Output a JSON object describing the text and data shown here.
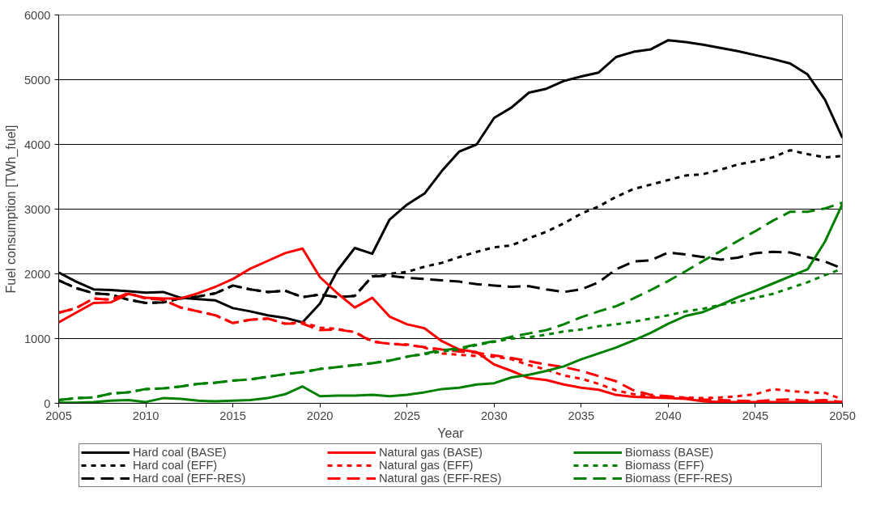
{
  "chart_data": {
    "type": "line",
    "xlabel": "Year",
    "ylabel": "Fuel consumption [TWh_fuel]",
    "x": [
      2005,
      2006,
      2007,
      2008,
      2009,
      2010,
      2011,
      2012,
      2013,
      2014,
      2015,
      2016,
      2017,
      2018,
      2019,
      2020,
      2021,
      2022,
      2023,
      2024,
      2025,
      2026,
      2027,
      2028,
      2029,
      2030,
      2031,
      2032,
      2033,
      2034,
      2035,
      2036,
      2037,
      2038,
      2039,
      2040,
      2041,
      2042,
      2043,
      2044,
      2045,
      2046,
      2047,
      2048,
      2049,
      2050
    ],
    "xlim": [
      2005,
      2050
    ],
    "xticks": [
      2005,
      2010,
      2015,
      2020,
      2025,
      2030,
      2035,
      2040,
      2045,
      2050
    ],
    "ylim": [
      0,
      6000
    ],
    "yticks": [
      0,
      1000,
      2000,
      3000,
      4000,
      5000,
      6000
    ],
    "grid": "y",
    "legend": "bottom",
    "series": [
      {
        "name": "Hard coal (BASE)",
        "color": "#000000",
        "line_style": "solid",
        "values": [
          2020,
          1880,
          1760,
          1750,
          1730,
          1710,
          1720,
          1630,
          1610,
          1590,
          1470,
          1420,
          1360,
          1320,
          1250,
          1540,
          2050,
          2400,
          2310,
          2840,
          3070,
          3240,
          3590,
          3890,
          4000,
          4410,
          4570,
          4800,
          4860,
          4980,
          5050,
          5110,
          5350,
          5430,
          5470,
          5610,
          5580,
          5540,
          5490,
          5440,
          5380,
          5320,
          5250,
          5080,
          4690,
          4100
        ]
      },
      {
        "name": "Hard coal (EFF)",
        "color": "#000000",
        "line_style": "dotted",
        "values": [
          1900,
          1780,
          1700,
          1680,
          1600,
          1550,
          1560,
          1620,
          1650,
          1700,
          1820,
          1760,
          1720,
          1740,
          1640,
          1680,
          1640,
          1660,
          1960,
          2000,
          2030,
          2110,
          2170,
          2260,
          2340,
          2410,
          2440,
          2550,
          2650,
          2780,
          2930,
          3040,
          3190,
          3310,
          3380,
          3450,
          3520,
          3540,
          3610,
          3690,
          3740,
          3800,
          3910,
          3850,
          3800,
          3820
        ]
      },
      {
        "name": "Hard coal (EFF-RES)",
        "color": "#000000",
        "line_style": "dashed",
        "values": [
          1900,
          1780,
          1700,
          1680,
          1600,
          1550,
          1560,
          1620,
          1650,
          1700,
          1820,
          1760,
          1720,
          1740,
          1640,
          1680,
          1640,
          1660,
          1960,
          1970,
          1940,
          1920,
          1900,
          1880,
          1840,
          1820,
          1800,
          1810,
          1760,
          1720,
          1760,
          1870,
          2070,
          2190,
          2210,
          2330,
          2300,
          2260,
          2220,
          2250,
          2320,
          2340,
          2330,
          2260,
          2190,
          2080
        ]
      },
      {
        "name": "Natural gas (BASE)",
        "color": "#ff0000",
        "line_style": "solid",
        "values": [
          1250,
          1400,
          1550,
          1560,
          1690,
          1630,
          1620,
          1620,
          1700,
          1800,
          1920,
          2080,
          2200,
          2320,
          2390,
          1950,
          1700,
          1480,
          1630,
          1340,
          1220,
          1160,
          960,
          830,
          790,
          600,
          500,
          390,
          360,
          290,
          240,
          210,
          130,
          100,
          90,
          80,
          70,
          30,
          20,
          20,
          20,
          20,
          20,
          20,
          20,
          20
        ]
      },
      {
        "name": "Natural gas (EFF)",
        "color": "#ff0000",
        "line_style": "dotted",
        "values": [
          1400,
          1470,
          1620,
          1600,
          1700,
          1620,
          1600,
          1480,
          1420,
          1360,
          1240,
          1290,
          1310,
          1230,
          1250,
          1170,
          1150,
          1100,
          960,
          920,
          910,
          860,
          770,
          750,
          730,
          720,
          680,
          590,
          520,
          430,
          380,
          300,
          200,
          140,
          110,
          100,
          90,
          80,
          90,
          110,
          140,
          220,
          190,
          170,
          160,
          60
        ]
      },
      {
        "name": "Natural gas (EFF-RES)",
        "color": "#ff0000",
        "line_style": "dashed",
        "values": [
          1400,
          1470,
          1620,
          1600,
          1700,
          1620,
          1600,
          1480,
          1420,
          1360,
          1240,
          1290,
          1310,
          1230,
          1230,
          1130,
          1140,
          1100,
          950,
          920,
          900,
          870,
          830,
          800,
          780,
          740,
          700,
          650,
          600,
          560,
          500,
          420,
          340,
          200,
          130,
          110,
          80,
          60,
          50,
          40,
          30,
          50,
          60,
          40,
          50,
          20
        ]
      },
      {
        "name": "Biomass (BASE)",
        "color": "#008000",
        "line_style": "solid",
        "values": [
          10,
          10,
          20,
          40,
          50,
          20,
          80,
          70,
          40,
          30,
          40,
          50,
          80,
          140,
          260,
          110,
          120,
          120,
          130,
          110,
          130,
          170,
          220,
          240,
          290,
          310,
          400,
          440,
          500,
          570,
          680,
          770,
          860,
          970,
          1090,
          1230,
          1350,
          1410,
          1520,
          1640,
          1740,
          1850,
          1960,
          2070,
          2500,
          3080
        ]
      },
      {
        "name": "Biomass (EFF)",
        "color": "#008000",
        "line_style": "dotted",
        "values": [
          50,
          80,
          90,
          150,
          170,
          220,
          230,
          260,
          300,
          320,
          350,
          370,
          410,
          450,
          480,
          530,
          560,
          590,
          620,
          660,
          720,
          760,
          800,
          830,
          900,
          950,
          1000,
          1020,
          1060,
          1110,
          1140,
          1190,
          1220,
          1260,
          1310,
          1360,
          1420,
          1460,
          1520,
          1570,
          1630,
          1690,
          1780,
          1870,
          1980,
          2080
        ]
      },
      {
        "name": "Biomass (EFF-RES)",
        "color": "#008000",
        "line_style": "dashed",
        "values": [
          50,
          80,
          90,
          150,
          170,
          220,
          230,
          260,
          300,
          320,
          350,
          370,
          410,
          450,
          480,
          530,
          560,
          590,
          620,
          660,
          720,
          770,
          820,
          850,
          910,
          960,
          1030,
          1080,
          1130,
          1220,
          1330,
          1420,
          1500,
          1620,
          1750,
          1890,
          2040,
          2200,
          2350,
          2510,
          2660,
          2820,
          2960,
          2960,
          3010,
          3100
        ]
      }
    ]
  }
}
